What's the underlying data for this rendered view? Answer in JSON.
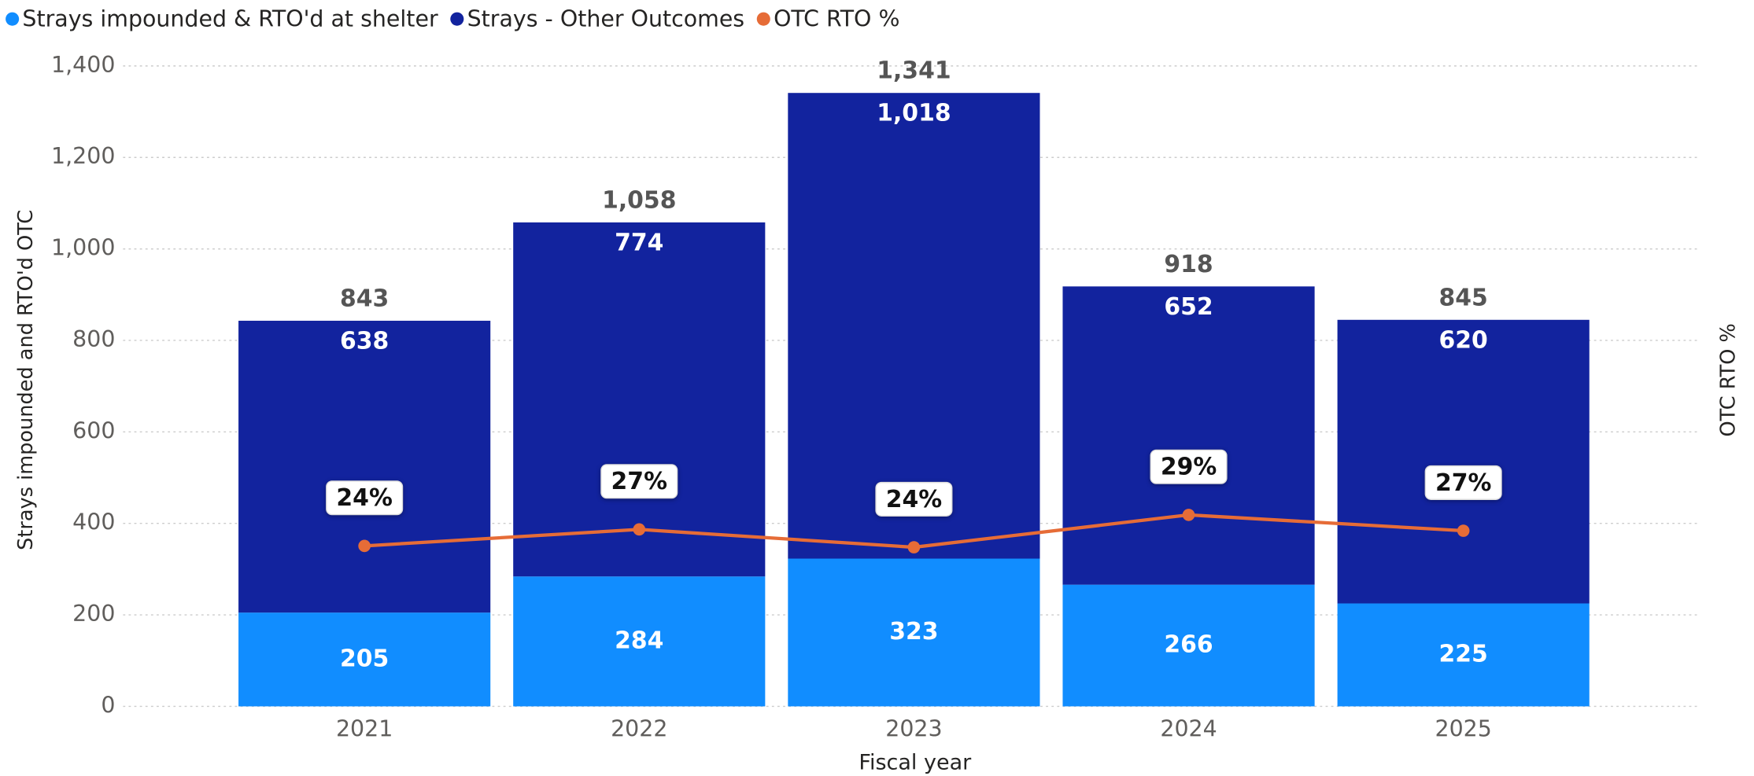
{
  "chart_data": {
    "type": "bar",
    "categories": [
      "2021",
      "2022",
      "2023",
      "2024",
      "2025"
    ],
    "series": [
      {
        "name": "Strays impounded & RTO'd at shelter",
        "color": "#118DFF",
        "values": [
          205,
          284,
          323,
          266,
          225
        ]
      },
      {
        "name": "Strays - Other Outcomes",
        "color": "#12239E",
        "values": [
          638,
          774,
          1018,
          652,
          620
        ],
        "value_labels": [
          "638",
          "774",
          "1,018",
          "652",
          "620"
        ]
      },
      {
        "name": "OTC RTO %",
        "color": "#E66C37",
        "type": "line",
        "axis": "y2",
        "values": [
          24.3,
          26.8,
          24.1,
          29.0,
          26.6
        ],
        "value_labels": [
          "24%",
          "27%",
          "24%",
          "29%",
          "27%"
        ]
      }
    ],
    "totals": [
      843,
      1058,
      1341,
      918,
      845
    ],
    "total_labels": [
      "843",
      "1,058",
      "1,341",
      "918",
      "845"
    ],
    "stacked": true,
    "xlabel": "Fiscal year",
    "ylabel": "Strays impounded and RTO'd OTC",
    "y2label": "OTC RTO %",
    "ylim": [
      0,
      1400
    ],
    "yticks": [
      0,
      200,
      400,
      600,
      800,
      {
        "value": 1000,
        "label": "1,000"
      },
      {
        "value": 1200,
        "label": "1,200"
      },
      {
        "value": 1400,
        "label": "1,400"
      }
    ],
    "y2lim": [
      0,
      97
    ],
    "grid": true,
    "legend": "top-left"
  }
}
